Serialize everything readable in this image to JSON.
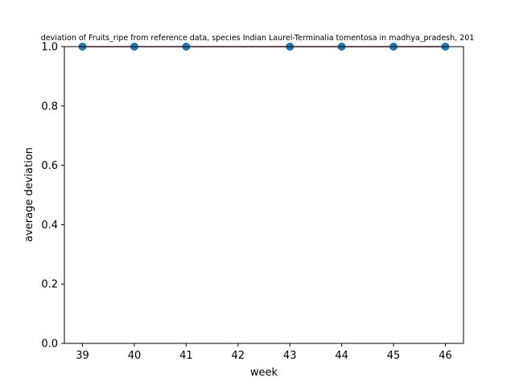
{
  "chart_data": {
    "type": "scatter",
    "title": "deviation of Fruits_ripe from reference data, species Indian Laurel-Terminalia tomentosa in madhya_pradesh, 201",
    "xlabel": "week",
    "ylabel": "average deviation",
    "x": [
      39,
      40,
      41,
      43,
      44,
      45,
      46
    ],
    "y": [
      1.0,
      1.0,
      1.0,
      1.0,
      1.0,
      1.0,
      1.0
    ],
    "xticks": [
      39,
      40,
      41,
      42,
      43,
      44,
      45,
      46
    ],
    "yticks": [
      "0.0",
      "0.2",
      "0.4",
      "0.6",
      "0.8",
      "1.0"
    ],
    "xlim": [
      38.65,
      46.35
    ],
    "ylim": [
      0.0,
      1.0
    ],
    "grid": false,
    "marker_color": "#1f77b4",
    "line_color": "#d62728"
  }
}
